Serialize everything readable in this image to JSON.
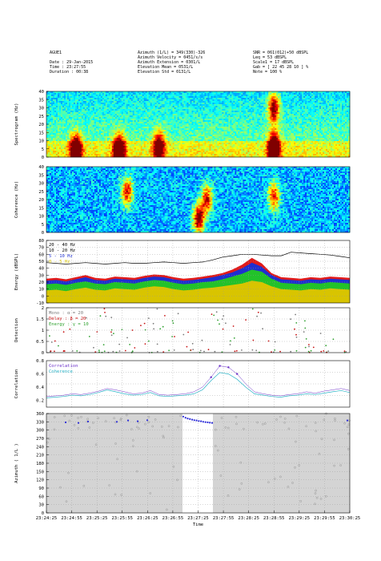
{
  "header": {
    "station": "AGUE1",
    "date": "Date     : 29-Jan-2015",
    "time": "Time     : 23:27:55",
    "duration": "Duration : 00:38",
    "azimuth": "Azimuth (1/L)     = 349(330)-326",
    "az_velocity": "Azimuth Velocity  = 0451/s/s",
    "az_extension": "Azimuth Extension = 0301/L",
    "elev_mean": "Elevation Mean    = 0531/L",
    "elev_std": "Elevation Std     = 0131/L",
    "snr": "SNR     = 061(012)+50 dBSPL",
    "leq": "Leq     = 53 dBSPL",
    "scale": "Scale1  = 17 dBSPL",
    "gab": "Gab     = [ 22 45 28 10 ] %",
    "note": "Note    = 100 %"
  },
  "colors": {
    "energy_band_1": "#d8c400",
    "energy_band_2": "#22c22a",
    "energy_band_3": "#1f2fd0",
    "energy_band_4": "#e11b1b",
    "energy_line": "#000000",
    "detection_alpha": "#7a7a7a",
    "detection_beta": "#c81414",
    "detection_gamma": "#2ea02e",
    "correlation": "#6a2fc8",
    "coherence": "#2bb3c8",
    "azimuth_points": "#2b2bd8",
    "azimuth_bg": "#d4d4d4"
  },
  "chart_data": [
    {
      "type": "heatmap",
      "ylabel": "Spectrogram (Hz)",
      "ylim": [
        0,
        40
      ],
      "yticks": [
        "40",
        "35",
        "30",
        "25",
        "20",
        "15",
        "10",
        "5",
        "0"
      ],
      "colormap": "jet",
      "hot_spots": [
        {
          "t": 18,
          "f": 4,
          "level": 0.85
        },
        {
          "t": 45,
          "f": 4,
          "level": 0.9
        },
        {
          "t": 70,
          "f": 6,
          "level": 0.7
        },
        {
          "t": 142,
          "f": 5,
          "level": 1.0
        },
        {
          "t": 142,
          "f": 30,
          "level": 0.65
        }
      ]
    },
    {
      "type": "heatmap",
      "ylabel": "Coherence (Hz)",
      "ylim": [
        0,
        40
      ],
      "yticks": [
        "40",
        "35",
        "30",
        "25",
        "20",
        "15",
        "10",
        "5",
        "0"
      ],
      "colormap": "jet",
      "hot_spots": [
        {
          "t": 50,
          "f": 25,
          "level": 0.6
        },
        {
          "t": 95,
          "f": 8,
          "level": 0.75
        },
        {
          "t": 100,
          "f": 20,
          "level": 0.6
        },
        {
          "t": 142,
          "f": 22,
          "level": 0.55
        }
      ]
    },
    {
      "type": "area",
      "ylabel": "Energy (dBSPL)",
      "ylim": [
        -10,
        80
      ],
      "yticks": [
        "80",
        "70",
        "60",
        "50",
        "40",
        "30",
        "20",
        "10",
        "0",
        "-10"
      ],
      "legend": [
        "20 - 40 Hz",
        "10 - 20 Hz",
        "5 - 10 Hz",
        "0 - 5 Hz"
      ],
      "series": [
        {
          "name": "0 - 5 Hz",
          "values": [
            8,
            9,
            7,
            10,
            12,
            9,
            8,
            11,
            10,
            9,
            12,
            14,
            13,
            10,
            8,
            9,
            11,
            12,
            14,
            16,
            18,
            22,
            20,
            14,
            10,
            9,
            8,
            10,
            9,
            11,
            10,
            9
          ]
        },
        {
          "name": "5 - 10 Hz",
          "values": [
            17,
            18,
            16,
            19,
            21,
            18,
            17,
            20,
            19,
            18,
            21,
            23,
            22,
            19,
            17,
            18,
            20,
            21,
            24,
            28,
            32,
            38,
            35,
            25,
            19,
            18,
            17,
            19,
            18,
            20,
            19,
            18
          ]
        },
        {
          "name": "10 - 20 Hz",
          "values": [
            22,
            23,
            21,
            24,
            27,
            23,
            22,
            25,
            24,
            23,
            26,
            28,
            27,
            24,
            22,
            23,
            25,
            27,
            30,
            34,
            40,
            48,
            42,
            30,
            24,
            23,
            22,
            24,
            23,
            25,
            24,
            23
          ]
        },
        {
          "name": "20 - 40 Hz",
          "values": [
            25,
            26,
            24,
            27,
            30,
            26,
            25,
            28,
            27,
            26,
            29,
            31,
            30,
            27,
            25,
            26,
            28,
            30,
            33,
            38,
            45,
            55,
            47,
            33,
            27,
            26,
            25,
            27,
            26,
            28,
            27,
            26
          ]
        }
      ],
      "line": [
        48,
        47,
        46,
        47,
        48,
        47,
        46,
        47,
        48,
        47,
        47,
        48,
        49,
        48,
        47,
        48,
        49,
        52,
        56,
        58,
        60,
        60,
        59,
        58,
        58,
        63,
        62,
        61,
        60,
        59,
        57,
        55
      ]
    },
    {
      "type": "scatter",
      "ylabel": "Detection",
      "ylim": [
        0,
        2
      ],
      "yticks": [
        "2",
        "1.5",
        "1",
        "0.5",
        "0"
      ],
      "legend": [
        "Mono  : α = 20",
        "Delay : β = 20",
        "Energy : γ = 10"
      ]
    },
    {
      "type": "line",
      "ylabel": "Correlation",
      "ylim": [
        0.1,
        0.8
      ],
      "yticks": [
        "0.8",
        "0.6",
        "0.4",
        "0.2"
      ],
      "legend": [
        "Correlation",
        "Coherence"
      ],
      "series": [
        {
          "name": "Correlation",
          "values": [
            0.26,
            0.27,
            0.28,
            0.3,
            0.29,
            0.31,
            0.34,
            0.38,
            0.36,
            0.33,
            0.3,
            0.31,
            0.35,
            0.29,
            0.28,
            0.29,
            0.3,
            0.33,
            0.4,
            0.55,
            0.72,
            0.7,
            0.6,
            0.45,
            0.33,
            0.3,
            0.28,
            0.27,
            0.29,
            0.3,
            0.33,
            0.31,
            0.34,
            0.36,
            0.38,
            0.35
          ]
        },
        {
          "name": "Coherence",
          "values": [
            0.24,
            0.25,
            0.26,
            0.28,
            0.27,
            0.29,
            0.32,
            0.36,
            0.33,
            0.3,
            0.28,
            0.29,
            0.32,
            0.27,
            0.26,
            0.27,
            0.28,
            0.3,
            0.36,
            0.5,
            0.62,
            0.6,
            0.52,
            0.4,
            0.3,
            0.28,
            0.26,
            0.25,
            0.27,
            0.28,
            0.3,
            0.29,
            0.31,
            0.33,
            0.35,
            0.32
          ]
        }
      ]
    },
    {
      "type": "scatter",
      "ylabel": "Azimuth ( 1/L )",
      "ylim": [
        0,
        360
      ],
      "yticks": [
        "360",
        "330",
        "300",
        "270",
        "240",
        "210",
        "180",
        "150",
        "120",
        "90",
        "60",
        "30",
        "0"
      ],
      "highlight_azimuth": [
        349,
        345,
        342,
        340,
        338,
        336,
        335,
        333,
        332,
        330,
        329,
        328,
        327,
        326
      ]
    }
  ],
  "x_axis": {
    "label": "Time",
    "ticks": [
      "23:24:25",
      "23:24:55",
      "23:25:25",
      "23:25:55",
      "23:26:25",
      "23:26:55",
      "23:27:25",
      "23:27:55",
      "23:28:25",
      "23:28:55",
      "23:29:25",
      "23:29:55",
      "23:30:25"
    ]
  }
}
